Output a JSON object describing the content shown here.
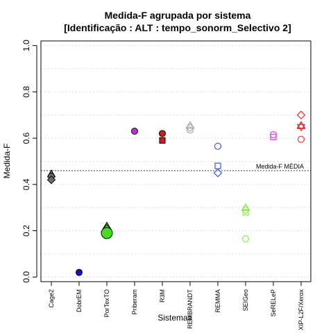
{
  "chart_data": {
    "type": "scatter",
    "title_line1": "Medida-F agrupada por sistema",
    "title_line2": "[Identificação : ALT : tempo_sonorm_Selectivo 2]",
    "xlabel": "Sistemas",
    "ylabel": "Medida-F",
    "ylim": [
      -0.02,
      1.02
    ],
    "yticks": [
      "0.0",
      "0.2",
      "0.4",
      "0.6",
      "0.8",
      "1.0"
    ],
    "ytick_values": [
      0.0,
      0.2,
      0.4,
      0.6,
      0.8,
      1.0
    ],
    "grid": true,
    "categories": [
      "Cage2",
      "DobrEM",
      "PorTexTO",
      "Priberam",
      "R3M",
      "REMBRANDT",
      "REMMA",
      "SEIGeo",
      "SeRELeP",
      "XIP-L2F/Xerox"
    ],
    "reference_line": {
      "label": "Medida-F MÉDIA",
      "value": 0.46,
      "color": "#808080"
    },
    "series": [
      {
        "category": "Cage2",
        "color": "#6e6e6e",
        "points": [
          {
            "y": 0.445,
            "marker": "triangle",
            "filled": true
          },
          {
            "y": 0.435,
            "marker": "circle",
            "filled": true
          },
          {
            "y": 0.42,
            "marker": "diamond",
            "filled": true
          }
        ]
      },
      {
        "category": "DobrEM",
        "color": "#1010d8",
        "points": [
          {
            "y": 0.02,
            "marker": "circle",
            "filled": true
          }
        ]
      },
      {
        "category": "PorTexTO",
        "color": "#44dd22",
        "points": [
          {
            "y": 0.22,
            "marker": "triangle",
            "filled": true
          },
          {
            "y": 0.21,
            "marker": "diamond",
            "filled": true
          },
          {
            "y": 0.19,
            "marker": "circle-large",
            "filled": true
          }
        ]
      },
      {
        "category": "Priberam",
        "color": "#c030d8",
        "points": [
          {
            "y": 0.63,
            "marker": "circle",
            "filled": true
          }
        ]
      },
      {
        "category": "R3M",
        "color": "#d41a1a",
        "points": [
          {
            "y": 0.62,
            "marker": "circle",
            "filled": true
          },
          {
            "y": 0.59,
            "marker": "square",
            "filled": true
          }
        ]
      },
      {
        "category": "REMBRANDT",
        "color": "#a8a8a8",
        "points": [
          {
            "y": 0.655,
            "marker": "triangle",
            "filled": false
          },
          {
            "y": 0.645,
            "marker": "diamond",
            "filled": false
          },
          {
            "y": 0.635,
            "marker": "circle",
            "filled": false
          }
        ]
      },
      {
        "category": "REMMA",
        "color": "#3355ff",
        "points": [
          {
            "y": 0.565,
            "marker": "circle",
            "filled": false
          },
          {
            "y": 0.48,
            "marker": "square",
            "filled": false
          },
          {
            "y": 0.45,
            "marker": "diamond",
            "filled": false
          }
        ]
      },
      {
        "category": "SEIGeo",
        "color": "#88ee44",
        "points": [
          {
            "y": 0.3,
            "marker": "triangle",
            "filled": false
          },
          {
            "y": 0.29,
            "marker": "diamond",
            "filled": false
          },
          {
            "y": 0.28,
            "marker": "square",
            "filled": false
          },
          {
            "y": 0.165,
            "marker": "circle",
            "filled": false
          }
        ]
      },
      {
        "category": "SeRELeP",
        "color": "#e040e8",
        "points": [
          {
            "y": 0.615,
            "marker": "circle",
            "filled": false
          },
          {
            "y": 0.605,
            "marker": "square",
            "filled": false
          }
        ]
      },
      {
        "category": "XIP-L2F/Xerox",
        "color": "#ee3333",
        "points": [
          {
            "y": 0.7,
            "marker": "diamond",
            "filled": false
          },
          {
            "y": 0.655,
            "marker": "triangle",
            "filled": false
          },
          {
            "y": 0.65,
            "marker": "star",
            "filled": false
          },
          {
            "y": 0.595,
            "marker": "circle",
            "filled": false
          }
        ]
      }
    ]
  }
}
